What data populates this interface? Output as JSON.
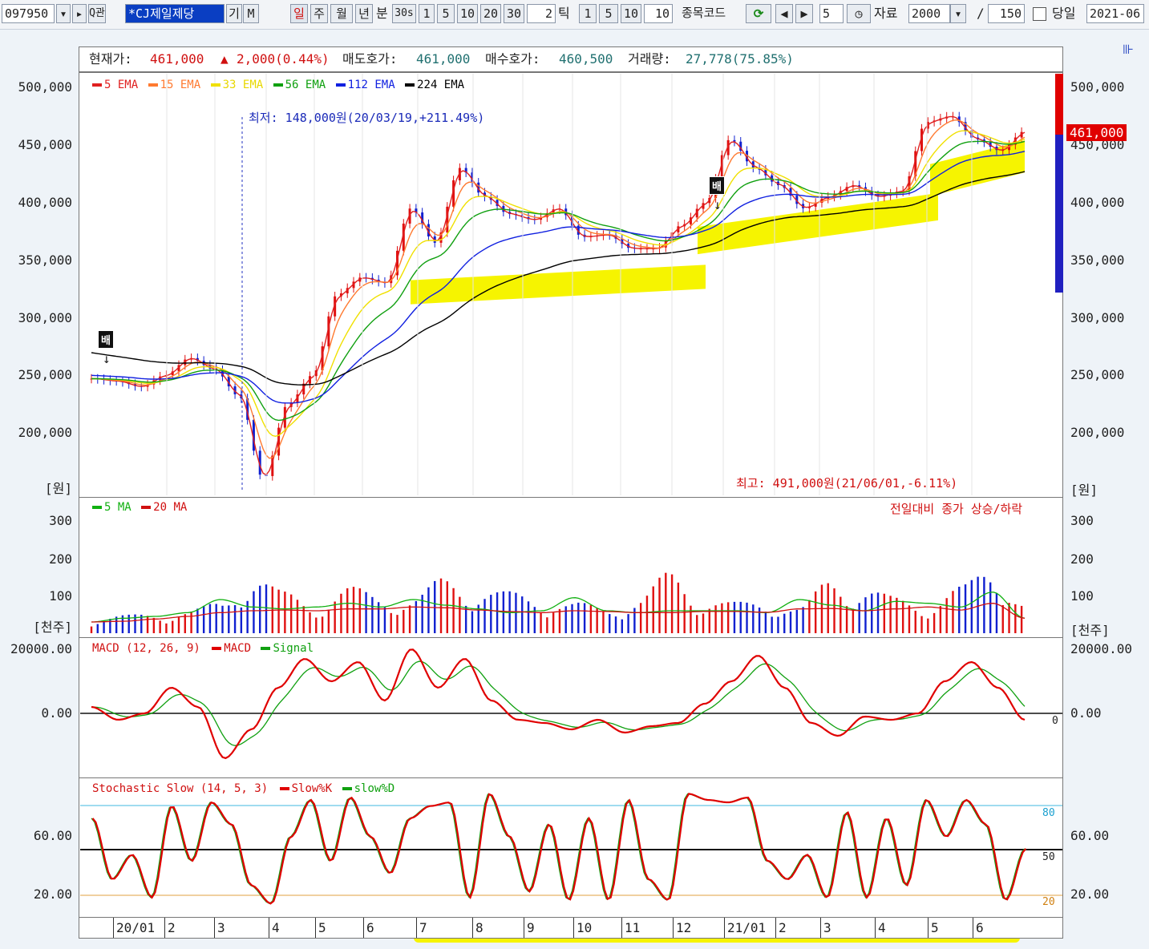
{
  "toolbar": {
    "code": "097950",
    "company": "*CJ제일제당",
    "gi_label": "기",
    "m_label": "M",
    "periods": [
      "일",
      "주",
      "월",
      "년"
    ],
    "bun_label": "분",
    "s30": "30s",
    "nums": [
      "1",
      "5",
      "10",
      "20",
      "30"
    ],
    "tick_value": "2",
    "tick_label": "틱",
    "tick_nums": [
      "1",
      "5",
      "10"
    ],
    "tick_input": "10",
    "stock_code_label": "종목코드",
    "step_value": "5",
    "data_label": "자료",
    "data_count": "2000",
    "slash": "/",
    "view_count": "150",
    "today_label": "당일",
    "date": "2021-06"
  },
  "info": {
    "current_label": "현재가:",
    "current_value": "461,000",
    "change": "2,000(0.44%)",
    "ask_label": "매도호가:",
    "ask_value": "461,000",
    "bid_label": "매수호가:",
    "bid_value": "460,500",
    "volume_label": "거래량:",
    "volume_value": "27,778(75.85%)"
  },
  "price_chart": {
    "legend": [
      {
        "label": "5 EMA",
        "color": "#e02020"
      },
      {
        "label": "15 EMA",
        "color": "#ff7a30"
      },
      {
        "label": "33 EMA",
        "color": "#f0e000"
      },
      {
        "label": "56 EMA",
        "color": "#10a010"
      },
      {
        "label": "112 EMA",
        "color": "#1020e0"
      },
      {
        "label": "224 EMA",
        "color": "#000000"
      }
    ],
    "y_ticks": [
      "500,000",
      "450,000",
      "400,000",
      "350,000",
      "300,000",
      "250,000",
      "200,000"
    ],
    "unit": "[원]",
    "low_annotation": "최저: 148,000원(20/03/19,+211.49%)",
    "high_annotation": "최고: 491,000원(21/06/01,-6.11%)",
    "current_price_tag": "461,000",
    "marker": "배"
  },
  "volume_chart": {
    "legend": [
      {
        "label": "5 MA",
        "color": "#10b010"
      },
      {
        "label": "20 MA",
        "color": "#d01010"
      }
    ],
    "note": "전일대비 종가 상승/하락",
    "y_ticks": [
      "300",
      "200",
      "100"
    ],
    "unit": "[천주]"
  },
  "macd_chart": {
    "title": "MACD (12, 26, 9)",
    "legend": [
      {
        "label": "MACD",
        "color": "#e00000"
      },
      {
        "label": "Signal",
        "color": "#10a010"
      }
    ],
    "y_ticks": [
      "20000.00",
      "0.00"
    ],
    "zero_label": "0"
  },
  "stoch_chart": {
    "title": "Stochastic Slow (14, 5, 3)",
    "legend": [
      {
        "label": "Slow%K",
        "color": "#e00000"
      },
      {
        "label": "slow%D",
        "color": "#10a010"
      }
    ],
    "y_ticks": [
      "60.00",
      "20.00"
    ],
    "levels": [
      "80",
      "50",
      "20"
    ]
  },
  "x_axis": [
    "20/01",
    "2",
    "3",
    "4",
    "5",
    "6",
    "7",
    "8",
    "9",
    "10",
    "11",
    "12",
    "21/01",
    "2",
    "3",
    "4",
    "5",
    "6"
  ]
}
